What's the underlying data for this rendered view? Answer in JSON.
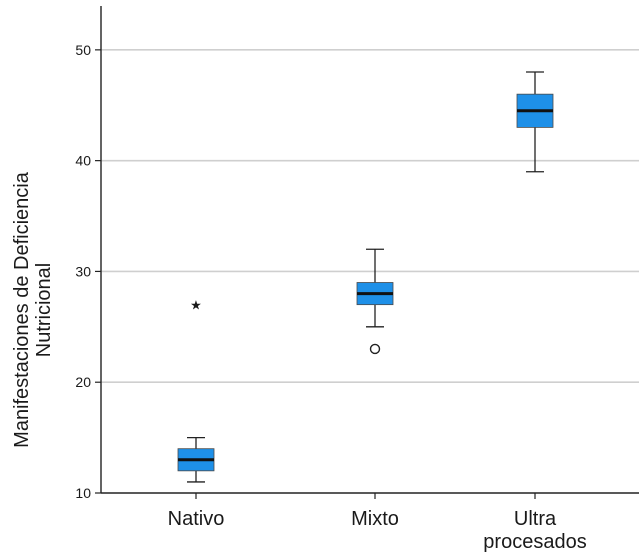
{
  "chart_data": {
    "type": "boxplot",
    "categories": [
      "Nativo",
      "Mixto",
      "Ultra\nprocesados"
    ],
    "category_lines": [
      [
        "Nativo"
      ],
      [
        "Mixto"
      ],
      [
        "Ultra",
        "procesados"
      ]
    ],
    "ylabel_lines": [
      "Manifestaciones de Deficiencia",
      "Nutricional"
    ],
    "xlabel": "",
    "title": "",
    "ylim": [
      10,
      54.5
    ],
    "yticks": [
      10,
      20,
      30,
      40,
      50
    ],
    "grid": true,
    "box_color": "#1e90e8",
    "median_color": "#111111",
    "boxes": [
      {
        "category": "Nativo",
        "whisker_low": 11,
        "q1": 12,
        "median": 13,
        "q3": 14,
        "whisker_high": 15,
        "outliers": [
          {
            "value": 27,
            "marker": "star"
          }
        ]
      },
      {
        "category": "Mixto",
        "whisker_low": 25,
        "q1": 27,
        "median": 28,
        "q3": 29,
        "whisker_high": 32,
        "outliers": [
          {
            "value": 23,
            "marker": "circle"
          }
        ]
      },
      {
        "category": "Ultra procesados",
        "whisker_low": 39,
        "q1": 43,
        "median": 44.5,
        "q3": 46,
        "whisker_high": 48,
        "outliers": []
      }
    ]
  }
}
